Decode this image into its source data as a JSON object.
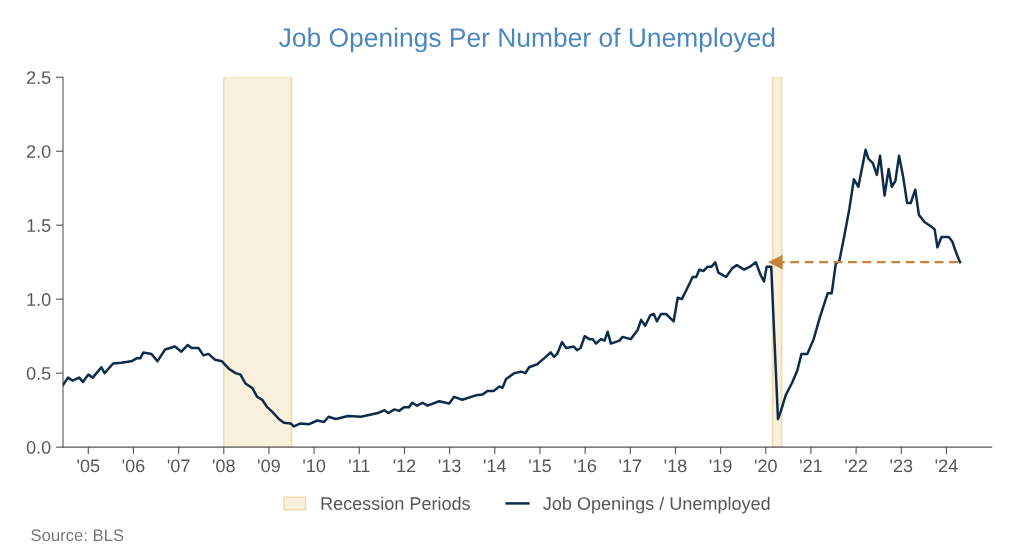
{
  "chart_data": {
    "type": "line",
    "title": "Job Openings Per Number of Unemployed",
    "x": [
      2004.44,
      2004.55,
      2004.65,
      2004.8,
      2004.88,
      2005.0,
      2005.1,
      2005.29,
      2005.36,
      2005.55,
      2005.73,
      2005.95,
      2006.07,
      2006.15,
      2006.22,
      2006.4,
      2006.53,
      2006.7,
      2006.92,
      2007.06,
      2007.2,
      2007.29,
      2007.44,
      2007.55,
      2007.66,
      2007.81,
      2007.96,
      2008.11,
      2008.26,
      2008.37,
      2008.48,
      2008.63,
      2008.74,
      2008.85,
      2008.96,
      2009.07,
      2009.22,
      2009.33,
      2009.48,
      2009.55,
      2009.7,
      2009.89,
      2010.07,
      2010.22,
      2010.32,
      2010.48,
      2010.75,
      2011.04,
      2011.41,
      2011.56,
      2011.64,
      2011.78,
      2011.88,
      2011.99,
      2012.1,
      2012.17,
      2012.28,
      2012.4,
      2012.51,
      2012.77,
      2012.99,
      2013.1,
      2013.28,
      2013.58,
      2013.73,
      2013.84,
      2013.98,
      2014.1,
      2014.17,
      2014.25,
      2014.43,
      2014.58,
      2014.68,
      2014.76,
      2014.94,
      2015.09,
      2015.24,
      2015.31,
      2015.38,
      2015.49,
      2015.58,
      2015.75,
      2015.82,
      2015.9,
      2015.99,
      2016.09,
      2016.17,
      2016.24,
      2016.35,
      2016.43,
      2016.5,
      2016.57,
      2016.76,
      2016.83,
      2017.01,
      2017.16,
      2017.24,
      2017.33,
      2017.44,
      2017.52,
      2017.59,
      2017.68,
      2017.79,
      2017.96,
      2018.05,
      2018.14,
      2018.24,
      2018.38,
      2018.46,
      2018.53,
      2018.62,
      2018.71,
      2018.8,
      2018.88,
      2018.95,
      2019.12,
      2019.26,
      2019.36,
      2019.52,
      2019.65,
      2019.78,
      2019.89,
      2019.96,
      2020.02,
      2020.12,
      2020.27,
      2020.33,
      2020.44,
      2020.59,
      2020.7,
      2020.79,
      2020.92,
      2021.06,
      2021.2,
      2021.37,
      2021.46,
      2021.55,
      2021.63,
      2021.74,
      2021.85,
      2021.95,
      2022.05,
      2022.21,
      2022.27,
      2022.37,
      2022.46,
      2022.53,
      2022.63,
      2022.72,
      2022.79,
      2022.87,
      2022.95,
      2023.04,
      2023.13,
      2023.21,
      2023.31,
      2023.39,
      2023.52,
      2023.67,
      2023.74,
      2023.8,
      2023.89,
      2024.05,
      2024.13,
      2024.22,
      2024.3
    ],
    "series": [
      {
        "name": "Job Openings / Unemployed",
        "color": "#0d2b4a",
        "values": [
          0.42,
          0.47,
          0.45,
          0.47,
          0.44,
          0.49,
          0.47,
          0.54,
          0.5,
          0.565,
          0.57,
          0.58,
          0.6,
          0.6,
          0.64,
          0.63,
          0.58,
          0.66,
          0.68,
          0.645,
          0.69,
          0.67,
          0.67,
          0.62,
          0.63,
          0.59,
          0.58,
          0.53,
          0.5,
          0.49,
          0.43,
          0.4,
          0.34,
          0.32,
          0.27,
          0.24,
          0.19,
          0.165,
          0.16,
          0.14,
          0.16,
          0.155,
          0.18,
          0.17,
          0.205,
          0.19,
          0.21,
          0.205,
          0.23,
          0.25,
          0.23,
          0.255,
          0.245,
          0.27,
          0.27,
          0.3,
          0.28,
          0.3,
          0.28,
          0.31,
          0.295,
          0.34,
          0.32,
          0.35,
          0.355,
          0.38,
          0.38,
          0.41,
          0.4,
          0.46,
          0.5,
          0.51,
          0.5,
          0.54,
          0.56,
          0.6,
          0.64,
          0.61,
          0.63,
          0.71,
          0.67,
          0.68,
          0.655,
          0.67,
          0.75,
          0.73,
          0.73,
          0.7,
          0.73,
          0.72,
          0.78,
          0.7,
          0.72,
          0.745,
          0.73,
          0.79,
          0.86,
          0.82,
          0.89,
          0.9,
          0.85,
          0.9,
          0.9,
          0.85,
          1.01,
          1.0,
          1.06,
          1.15,
          1.15,
          1.2,
          1.19,
          1.22,
          1.22,
          1.25,
          1.18,
          1.15,
          1.21,
          1.23,
          1.2,
          1.22,
          1.25,
          1.16,
          1.12,
          1.22,
          1.22,
          0.19,
          0.24,
          0.35,
          0.44,
          0.52,
          0.63,
          0.63,
          0.73,
          0.88,
          1.04,
          1.04,
          1.24,
          1.26,
          1.43,
          1.61,
          1.81,
          1.76,
          2.01,
          1.95,
          1.92,
          1.84,
          1.97,
          1.7,
          1.88,
          1.76,
          1.8,
          1.97,
          1.83,
          1.65,
          1.65,
          1.74,
          1.57,
          1.52,
          1.49,
          1.47,
          1.35,
          1.42,
          1.42,
          1.39,
          1.31,
          1.25
        ]
      },
      {
        "type": "line",
        "color": "#c8843c",
        "line_style": "dashed",
        "marker": "triangle",
        "x": [
          2020.22,
          2024.3
        ],
        "values": [
          1.25,
          1.25
        ]
      }
    ],
    "bands": [
      {
        "axis": "x",
        "from": 2008.0,
        "to": 2009.5,
        "label": "Recession Periods",
        "color": "#f8efdc"
      },
      {
        "axis": "x",
        "from": 2020.15,
        "to": 2020.35,
        "color": "#f8efdc"
      }
    ],
    "xlim": [
      2004.44,
      2025.0
    ],
    "xticks": [
      {
        "value": 2005,
        "label": "'05"
      },
      {
        "value": 2006,
        "label": "'06"
      },
      {
        "value": 2007,
        "label": "'07"
      },
      {
        "value": 2008,
        "label": "'08"
      },
      {
        "value": 2009,
        "label": "'09"
      },
      {
        "value": 2010,
        "label": "'10"
      },
      {
        "value": 2011,
        "label": "'11"
      },
      {
        "value": 2012,
        "label": "'12"
      },
      {
        "value": 2013,
        "label": "'13"
      },
      {
        "value": 2014,
        "label": "'14"
      },
      {
        "value": 2015,
        "label": "'15"
      },
      {
        "value": 2016,
        "label": "'16"
      },
      {
        "value": 2017,
        "label": "'17"
      },
      {
        "value": 2018,
        "label": "'18"
      },
      {
        "value": 2019,
        "label": "'19"
      },
      {
        "value": 2020,
        "label": "'20"
      },
      {
        "value": 2021,
        "label": "'21"
      },
      {
        "value": 2022,
        "label": "'22"
      },
      {
        "value": 2023,
        "label": "'23"
      },
      {
        "value": 2024,
        "label": "'24"
      }
    ],
    "ylim": [
      0,
      2.5
    ],
    "yticks": [
      {
        "value": 0,
        "label": "0.0"
      },
      {
        "value": 0.5,
        "label": "0.5"
      },
      {
        "value": 1,
        "label": "1.0"
      },
      {
        "value": 1.5,
        "label": "1.5"
      },
      {
        "value": 2,
        "label": "2.0"
      },
      {
        "value": 2.5,
        "label": "2.5"
      }
    ],
    "legend": "bottom",
    "grid": false,
    "annotations": [
      "Source: BLS"
    ]
  }
}
